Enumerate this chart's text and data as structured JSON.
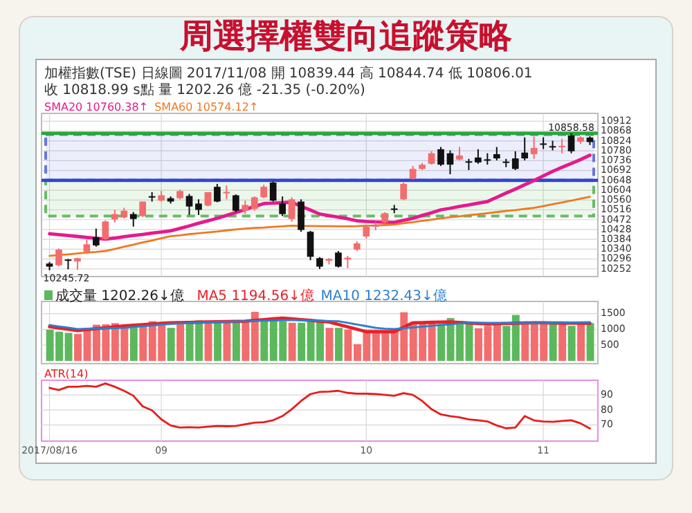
{
  "chart_data": [
    {
      "type": "candlestick",
      "title": "周選擇權雙向追蹤策略",
      "subtitle": "加權指數(TSE)  日線圖  2017/11/08  開 10839.44  高 10844.74  低 10806.01  收 10818.99 s點  量 1202.26 億  -21.35 (-0.20%)",
      "categories": [
        "2017/08/16",
        null,
        null,
        null,
        null,
        null,
        null,
        null,
        null,
        null,
        null,
        null,
        "09",
        null,
        null,
        null,
        null,
        null,
        null,
        null,
        null,
        null,
        null,
        null,
        null,
        null,
        null,
        null,
        null,
        null,
        null,
        null,
        null,
        null,
        "10",
        null,
        null,
        null,
        null,
        null,
        null,
        null,
        null,
        null,
        null,
        null,
        null,
        null,
        null,
        null,
        null,
        null,
        null,
        "11",
        null,
        null,
        null,
        null,
        null
      ],
      "ohlc": [
        [
          10276,
          10283,
          10245.72,
          10262
        ],
        [
          10268,
          10343,
          10263,
          10338
        ],
        [
          10294,
          10296,
          10250,
          10290
        ],
        [
          10285,
          10302,
          10248,
          10300
        ],
        [
          10329,
          10381,
          10325,
          10362
        ],
        [
          10394,
          10432,
          10351,
          10357
        ],
        [
          10385,
          10469,
          10381,
          10464
        ],
        [
          10473,
          10516,
          10460,
          10497
        ],
        [
          10482,
          10525,
          10478,
          10512
        ],
        [
          10497,
          10506,
          10441,
          10475
        ],
        [
          10488,
          10553,
          10484,
          10553
        ],
        [
          10577,
          10595,
          10553,
          10575
        ],
        [
          10557,
          10600,
          10553,
          10581
        ],
        [
          10568,
          10576,
          10544,
          10553
        ],
        [
          10568,
          10606,
          10563,
          10600
        ],
        [
          10578,
          10587,
          10493,
          10531
        ],
        [
          10544,
          10563,
          10493,
          10516
        ],
        [
          10535,
          10595,
          10531,
          10595
        ],
        [
          10619,
          10632,
          10550,
          10553
        ],
        [
          10594,
          10625,
          10563,
          10596
        ],
        [
          10581,
          10585,
          10506,
          10512
        ],
        [
          10512,
          10557,
          10497,
          10538
        ],
        [
          10520,
          10576,
          10512,
          10572
        ],
        [
          10572,
          10628,
          10568,
          10619
        ],
        [
          10638,
          10642,
          10553,
          10557
        ],
        [
          10544,
          10576,
          10488,
          10497
        ],
        [
          10475,
          10572,
          10463,
          10563
        ],
        [
          10553,
          10563,
          10418,
          10426
        ],
        [
          10418,
          10422,
          10291,
          10306
        ],
        [
          10300,
          10304,
          10252,
          10262
        ],
        [
          10288,
          10300,
          10272,
          10296
        ],
        [
          10325,
          10332,
          10258,
          10262
        ],
        [
          10294,
          10310,
          10255,
          10302
        ],
        [
          10338,
          10375,
          10332,
          10366
        ],
        [
          10397,
          10444,
          10388,
          10440
        ],
        [
          10440,
          10460,
          10425,
          10450
        ],
        [
          10460,
          10505,
          10455,
          10501
        ],
        [
          10522,
          10538,
          10501,
          10518
        ],
        [
          10563,
          10638,
          10559,
          10632
        ],
        [
          10656,
          10712,
          10652,
          10699
        ],
        [
          10699,
          10725,
          10695,
          10718
        ],
        [
          10722,
          10778,
          10718,
          10769
        ],
        [
          10787,
          10797,
          10712,
          10718
        ],
        [
          10769,
          10782,
          10675,
          10718
        ],
        [
          10741,
          10797,
          10737,
          10759
        ],
        [
          10733,
          10744,
          10694,
          10730
        ],
        [
          10750,
          10787,
          10722,
          10728
        ],
        [
          10742,
          10769,
          10718,
          10740
        ],
        [
          10765,
          10797,
          10737,
          10746
        ],
        [
          10732,
          10744,
          10707,
          10730
        ],
        [
          10746,
          10778,
          10694,
          10699
        ],
        [
          10772,
          10840,
          10737,
          10746
        ],
        [
          10765,
          10844,
          10744,
          10793
        ],
        [
          10813,
          10840,
          10788,
          10811
        ],
        [
          10801,
          10825,
          10782,
          10800
        ],
        [
          10799,
          10834,
          10769,
          10802
        ],
        [
          10849,
          10858.58,
          10769,
          10778
        ],
        [
          10821,
          10844,
          10812,
          10840
        ],
        [
          10839.44,
          10844.74,
          10806.01,
          10818.99
        ]
      ],
      "colors": [
        "#111111",
        "#f26d6d",
        "#111111",
        "#f26d6d",
        "#f26d6d",
        "#111111",
        "#f26d6d",
        "#f26d6d",
        "#f26d6d",
        "#111111",
        "#f26d6d",
        "#111111",
        "#f26d6d",
        "#111111",
        "#f26d6d",
        "#111111",
        "#111111",
        "#f26d6d",
        "#111111",
        "#f26d6d",
        "#111111",
        "#f26d6d",
        "#f26d6d",
        "#f26d6d",
        "#111111",
        "#111111",
        "#f26d6d",
        "#111111",
        "#111111",
        "#111111",
        "#f26d6d",
        "#111111",
        "#f26d6d",
        "#f26d6d",
        "#f26d6d",
        "#f26d6d",
        "#f26d6d",
        "#111111",
        "#f26d6d",
        "#f26d6d",
        "#f26d6d",
        "#f26d6d",
        "#111111",
        "#111111",
        "#f26d6d",
        "#111111",
        "#111111",
        "#111111",
        "#111111",
        "#111111",
        "#111111",
        "#111111",
        "#f26d6d",
        "#111111",
        "#111111",
        "#f26d6d",
        "#111111",
        "#f26d6d",
        "#111111"
      ],
      "series": [
        {
          "type": "line",
          "name": "SMA20 10760.38↑",
          "color": "#e6198c",
          "values": [
            10409,
            10405,
            10401,
            10397,
            10393,
            10389,
            10385,
            10390,
            10396,
            10401,
            10406,
            10412,
            10417,
            10422,
            10433,
            10444,
            10456,
            10467,
            10478,
            10491,
            10504,
            10518,
            10531,
            10544,
            10546,
            10548,
            10550,
            10532,
            10515,
            10497,
            10490,
            10483,
            10476,
            10467,
            10464,
            10462,
            10461,
            10460,
            10469,
            10478,
            10491,
            10503,
            10516,
            10523,
            10531,
            10538,
            10546,
            10553,
            10572,
            10591,
            10609,
            10628,
            10647,
            10668,
            10688,
            10706,
            10723,
            10741,
            10760.38
          ]
        },
        {
          "type": "line",
          "name": "SMA60 10574.12↑",
          "color": "#f07820",
          "values": [
            10310,
            10314,
            10317,
            10321,
            10325,
            10328,
            10332,
            10341,
            10351,
            10360,
            10370,
            10379,
            10389,
            10398,
            10402,
            10407,
            10411,
            10415,
            10419,
            10424,
            10428,
            10432,
            10435,
            10437,
            10440,
            10442,
            10445,
            10444,
            10444,
            10443,
            10443,
            10442,
            10442,
            10443,
            10445,
            10446,
            10448,
            10450,
            10456,
            10461,
            10467,
            10472,
            10478,
            10483,
            10487,
            10492,
            10496,
            10501,
            10506,
            10511,
            10515,
            10520,
            10525,
            10533,
            10541,
            10549,
            10557,
            10566,
            10574.12
          ]
        }
      ],
      "ylim": [
        10230,
        10935
      ],
      "yticks": [
        10252,
        10296,
        10340,
        10384,
        10428,
        10472,
        10516,
        10560,
        10604,
        10648,
        10692,
        10736,
        10780,
        10824,
        10868,
        10912
      ],
      "ref_lines": [
        {
          "axis": "y",
          "value": 10648,
          "color": "#3344cc"
        },
        {
          "axis": "y",
          "value": 10858,
          "color": "#22aa33"
        }
      ],
      "bands": [
        {
          "axis": "y",
          "from": 10488,
          "to": 10648,
          "color": "#66bb66"
        },
        {
          "axis": "y",
          "from": 10648,
          "to": 10853,
          "color": "#6677dd"
        }
      ],
      "annotations": [
        {
          "text": "10245.72",
          "y": 10245.72
        },
        {
          "text": "10858.58",
          "y": 10858.58
        }
      ],
      "grid": true,
      "legend": "top left",
      "tick_labels": "y"
    },
    {
      "type": "bar",
      "categories": [
        "2017/08/16",
        null,
        null,
        null,
        null,
        null,
        null,
        null,
        null,
        null,
        null,
        null,
        "09",
        null,
        null,
        null,
        null,
        null,
        null,
        null,
        null,
        null,
        null,
        null,
        null,
        null,
        null,
        null,
        null,
        null,
        null,
        null,
        null,
        null,
        "10",
        null,
        null,
        null,
        null,
        null,
        null,
        null,
        null,
        null,
        null,
        null,
        null,
        null,
        null,
        null,
        null,
        null,
        null,
        "11",
        null,
        null,
        null,
        null,
        null
      ],
      "series": [
        {
          "type": "bar",
          "name": "成交量 1202.26↓億",
          "values": [
            989,
            927,
            890,
            853,
            1050,
            1149,
            1161,
            1198,
            1112,
            1050,
            1174,
            1260,
            1174,
            1050,
            1186,
            1273,
            1285,
            1236,
            1260,
            1273,
            1236,
            1260,
            1557,
            1334,
            1359,
            1260,
            1211,
            1211,
            1260,
            1260,
            1050,
            1050,
            989,
            532,
            951,
            927,
            927,
            989,
            1544,
            1236,
            1211,
            1236,
            1174,
            1359,
            1211,
            1211,
            1038,
            1112,
            1211,
            1112,
            1458,
            1236,
            1236,
            1236,
            1174,
            1211,
            1112,
            1236,
            1202.26
          ],
          "colors": [
            "#5cb85c",
            "#5cb85c",
            "#5cb85c",
            "#f26d6d",
            "#f26d6d",
            "#f26d6d",
            "#f26d6d",
            "#f26d6d",
            "#f26d6d",
            "#5cb85c",
            "#f26d6d",
            "#f26d6d",
            "#f26d6d",
            "#5cb85c",
            "#f26d6d",
            "#5cb85c",
            "#5cb85c",
            "#f26d6d",
            "#5cb85c",
            "#f26d6d",
            "#5cb85c",
            "#f26d6d",
            "#f26d6d",
            "#5cb85c",
            "#5cb85c",
            "#5cb85c",
            "#f26d6d",
            "#5cb85c",
            "#5cb85c",
            "#5cb85c",
            "#f26d6d",
            "#5cb85c",
            "#f26d6d",
            "#f26d6d",
            "#f26d6d",
            "#f26d6d",
            "#f26d6d",
            "#f26d6d",
            "#f26d6d",
            "#f26d6d",
            "#f26d6d",
            "#f26d6d",
            "#5cb85c",
            "#5cb85c",
            "#5cb85c",
            "#5cb85c",
            "#f26d6d",
            "#f26d6d",
            "#f26d6d",
            "#5cb85c",
            "#5cb85c",
            "#f26d6d",
            "#f26d6d",
            "#f26d6d",
            "#5cb85c",
            "#f26d6d",
            "#5cb85c",
            "#f26d6d",
            "#5cb85c"
          ]
        },
        {
          "type": "line",
          "name": "MA5 1194.56↓億",
          "color": "#e8202a",
          "values": [
            1087,
            1046,
            1005,
            964,
            994,
            1024,
            1053,
            1083,
            1112,
            1132,
            1152,
            1172,
            1191,
            1211,
            1217,
            1223,
            1229,
            1236,
            1242,
            1248,
            1254,
            1260,
            1285,
            1310,
            1334,
            1359,
            1334,
            1310,
            1285,
            1260,
            1236,
            1159,
            1081,
            1004,
            927,
            927,
            927,
            927,
            1069,
            1211,
            1217,
            1224,
            1230,
            1236,
            1221,
            1205,
            1190,
            1174,
            1181,
            1189,
            1196,
            1204,
            1211,
            1208,
            1205,
            1202,
            1200,
            1197,
            1194.56
          ]
        },
        {
          "type": "line",
          "name": "MA10 1232.43↓億",
          "color": "#2a7fd0",
          "values": [
            1137,
            1096,
            1054,
            1013,
            1020,
            1028,
            1035,
            1043,
            1050,
            1075,
            1100,
            1124,
            1149,
            1174,
            1186,
            1199,
            1211,
            1224,
            1236,
            1244,
            1251,
            1259,
            1267,
            1274,
            1282,
            1290,
            1297,
            1290,
            1282,
            1275,
            1267,
            1260,
            1208,
            1155,
            1103,
            1050,
            1025,
            1013,
            1038,
            1062,
            1087,
            1112,
            1137,
            1161,
            1186,
            1211,
            1209,
            1207,
            1206,
            1204,
            1202,
            1200,
            1198,
            1204,
            1209,
            1215,
            1221,
            1227,
            1232.43
          ]
        }
      ],
      "ylim": [
        0,
        1800
      ],
      "yticks": [
        500,
        1000,
        1500
      ],
      "grid": true,
      "legend": "top left",
      "tick_labels": "y"
    },
    {
      "type": "line",
      "categories": [
        "2017/08/16",
        null,
        null,
        null,
        null,
        null,
        null,
        null,
        null,
        null,
        null,
        null,
        "09",
        null,
        null,
        null,
        null,
        null,
        null,
        null,
        null,
        null,
        null,
        null,
        null,
        null,
        null,
        null,
        null,
        null,
        null,
        null,
        null,
        null,
        "10",
        null,
        null,
        null,
        null,
        null,
        null,
        null,
        null,
        null,
        null,
        null,
        null,
        null,
        null,
        null,
        null,
        null,
        null,
        "11",
        null,
        null,
        null,
        null,
        null
      ],
      "series": [
        {
          "name": "ATR(14)",
          "color": "#e81c1c",
          "values": [
            94.7,
            93.3,
            95.5,
            95.5,
            96.1,
            95.5,
            97.7,
            95.5,
            92.8,
            89.5,
            82.4,
            79.7,
            73.7,
            69.6,
            68.2,
            68.5,
            68.2,
            68.8,
            69.3,
            69.1,
            69.3,
            70.4,
            71.5,
            71.8,
            73.1,
            75.9,
            80.5,
            86.0,
            90.6,
            92.0,
            92.3,
            92.8,
            91.4,
            90.9,
            90.9,
            90.6,
            90.1,
            89.5,
            91.2,
            90.1,
            86.0,
            80.5,
            77.0,
            75.9,
            75.1,
            73.7,
            73.1,
            72.3,
            69.6,
            67.7,
            68.2,
            75.9,
            73.0,
            72.3,
            72.0,
            72.6,
            73.1,
            71.0,
            67.6
          ]
        }
      ],
      "ylim": [
        61,
        98
      ],
      "yticks": [
        70,
        80,
        90
      ],
      "grid": true,
      "legend": "top left"
    }
  ]
}
